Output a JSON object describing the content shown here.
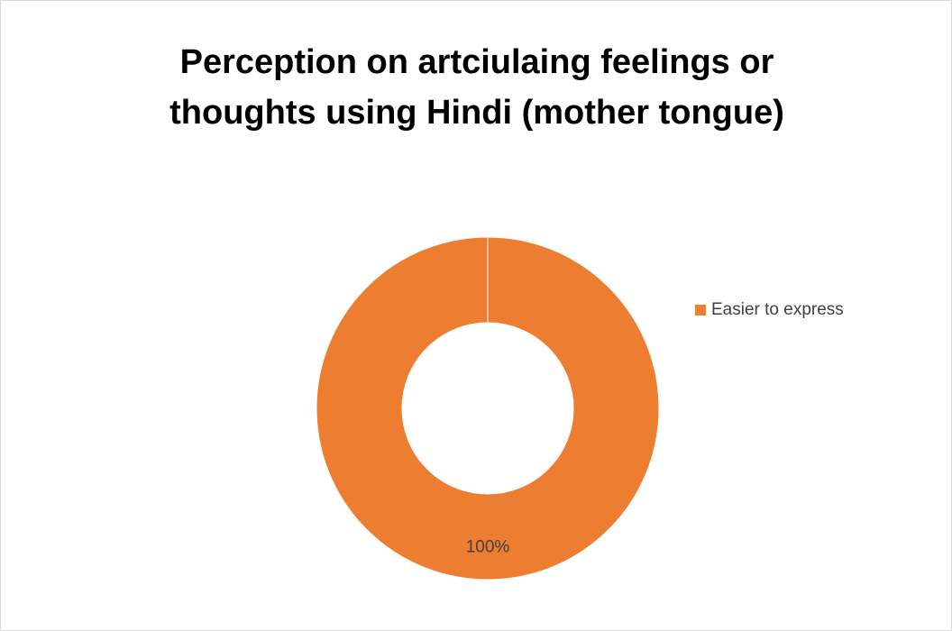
{
  "chart_data": {
    "type": "doughnut",
    "title": "Perception on artciulaing feelings or thoughts using Hindi (mother tongue)",
    "categories": [
      "Easier to express"
    ],
    "values": [
      100
    ],
    "value_labels": [
      "100%"
    ],
    "colors": [
      "#ed7d31"
    ],
    "legend": "right"
  }
}
